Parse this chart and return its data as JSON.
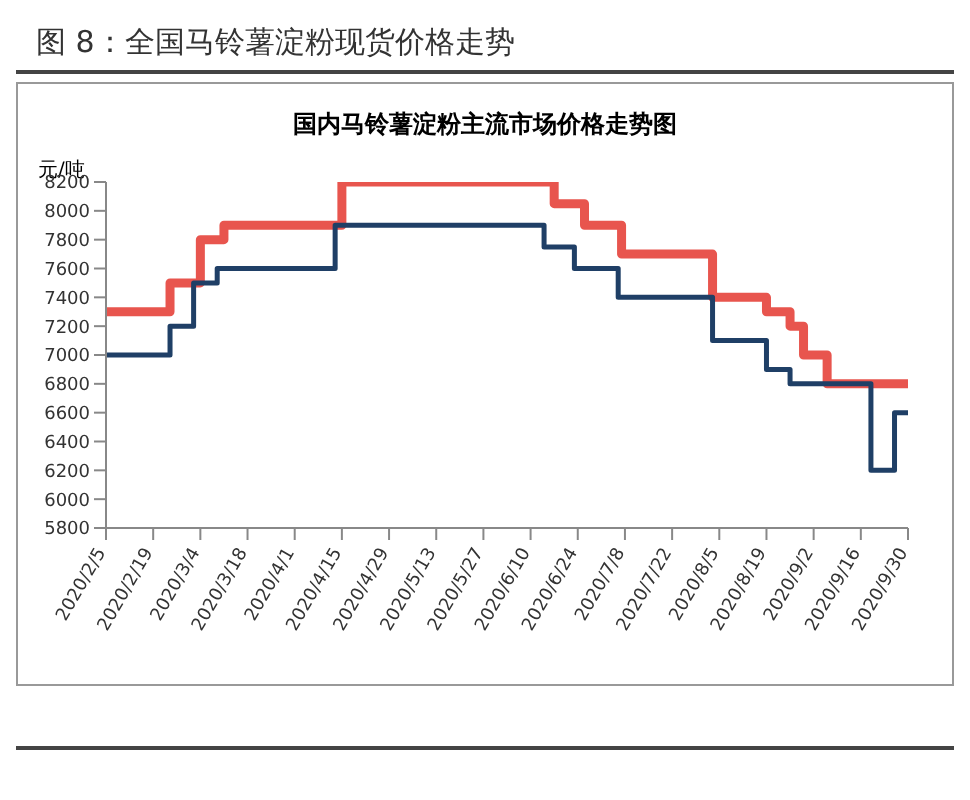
{
  "chart_data": {
    "type": "step",
    "title": "图 8：全国马铃薯淀粉现货价格走势",
    "subtitle": "国内马铃薯淀粉主流市场价格走势图",
    "ylabel": "元/吨",
    "series": [
      {
        "color": "#e8554e",
        "x": [
          "2020-02-05",
          "2020-02-24",
          "2020-03-04",
          "2020-03-11",
          "2020-04-15",
          "2020-06-17",
          "2020-06-26",
          "2020-07-07",
          "2020-08-03",
          "2020-08-19",
          "2020-08-26",
          "2020-08-30",
          "2020-09-06",
          "2020-09-30"
        ],
        "values": [
          7300,
          7500,
          7800,
          7900,
          8200,
          8050,
          7900,
          7700,
          7400,
          7300,
          7200,
          7000,
          6800,
          6800
        ]
      },
      {
        "color": "#1f3f66",
        "x": [
          "2020-02-05",
          "2020-02-24",
          "2020-03-02",
          "2020-03-09",
          "2020-04-13",
          "2020-06-14",
          "2020-06-23",
          "2020-07-06",
          "2020-08-03",
          "2020-08-19",
          "2020-08-26",
          "2020-09-19",
          "2020-09-26",
          "2020-09-30"
        ],
        "values": [
          7000,
          7200,
          7500,
          7600,
          7900,
          7750,
          7600,
          7400,
          7100,
          6900,
          6800,
          6200,
          6600,
          6600
        ]
      }
    ],
    "xlim": [
      "2020-02-05",
      "2020-09-30"
    ],
    "xticks": [
      {
        "value": "2020-02-05",
        "label": "2020/2/5"
      },
      {
        "value": "2020-02-19",
        "label": "2020/2/19"
      },
      {
        "value": "2020-03-04",
        "label": "2020/3/4"
      },
      {
        "value": "2020-03-18",
        "label": "2020/3/18"
      },
      {
        "value": "2020-04-01",
        "label": "2020/4/1"
      },
      {
        "value": "2020-04-15",
        "label": "2020/4/15"
      },
      {
        "value": "2020-04-29",
        "label": "2020/4/29"
      },
      {
        "value": "2020-05-13",
        "label": "2020/5/13"
      },
      {
        "value": "2020-05-27",
        "label": "2020/5/27"
      },
      {
        "value": "2020-06-10",
        "label": "2020/6/10"
      },
      {
        "value": "2020-06-24",
        "label": "2020/6/24"
      },
      {
        "value": "2020-07-08",
        "label": "2020/7/8"
      },
      {
        "value": "2020-07-22",
        "label": "2020/7/22"
      },
      {
        "value": "2020-08-05",
        "label": "2020/8/5"
      },
      {
        "value": "2020-08-19",
        "label": "2020/8/19"
      },
      {
        "value": "2020-09-02",
        "label": "2020/9/2"
      },
      {
        "value": "2020-09-16",
        "label": "2020/9/16"
      },
      {
        "value": "2020-09-30",
        "label": "2020/9/30"
      }
    ],
    "ylim": [
      5800,
      8200
    ],
    "yticks": [
      5800,
      6000,
      6200,
      6400,
      6600,
      6800,
      7000,
      7200,
      7400,
      7600,
      7800,
      8000,
      8200
    ]
  }
}
